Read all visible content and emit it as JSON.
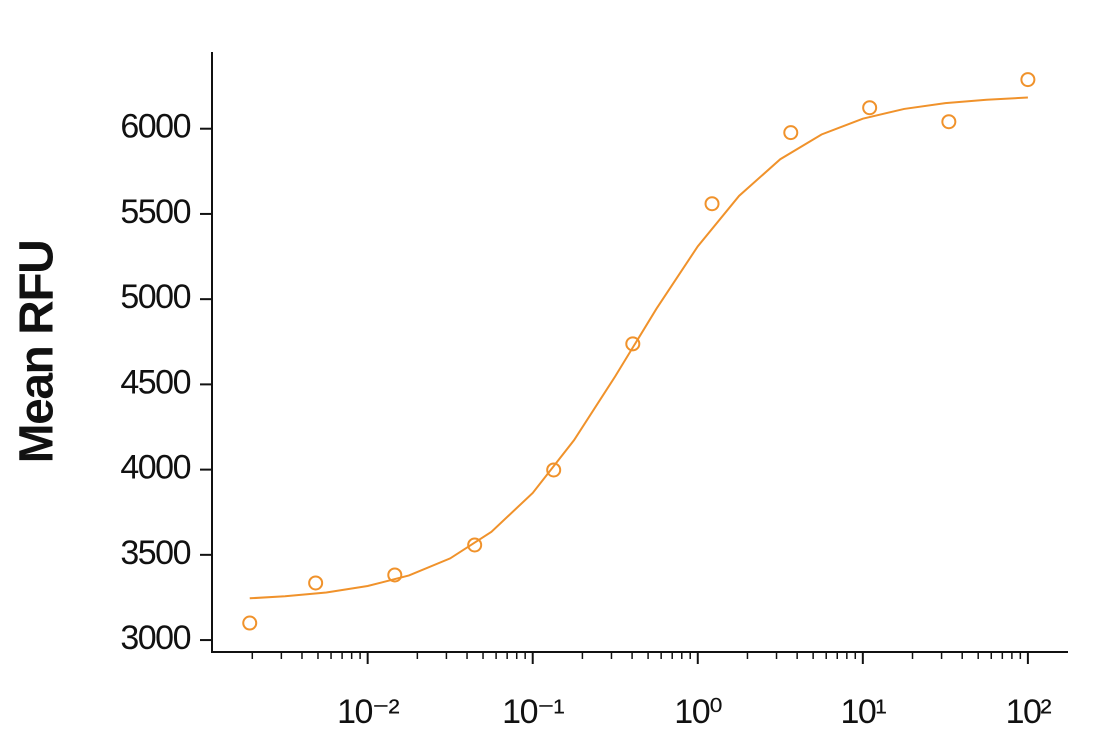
{
  "chart_data": {
    "type": "scatter",
    "y_label": "Mean RFU",
    "xscale": "log",
    "xlim": [
      0.00114,
      175
    ],
    "ylim": [
      2930,
      6450
    ],
    "xticks": [
      {
        "value": 0.01,
        "label": "10⁻²"
      },
      {
        "value": 0.1,
        "label": "10⁻¹"
      },
      {
        "value": 1,
        "label": "10⁰"
      },
      {
        "value": 10,
        "label": "10¹"
      },
      {
        "value": 100,
        "label": "10²"
      }
    ],
    "xminorticks": [
      0.002,
      0.003,
      0.004,
      0.005,
      0.006,
      0.007,
      0.008,
      0.009,
      0.02,
      0.03,
      0.04,
      0.05,
      0.06,
      0.07,
      0.08,
      0.09,
      0.2,
      0.3,
      0.4,
      0.5,
      0.6,
      0.7,
      0.8,
      0.9,
      2,
      3,
      4,
      5,
      6,
      7,
      8,
      9,
      20,
      30,
      40,
      50,
      60,
      70,
      80,
      90
    ],
    "yticks": [
      3000,
      3500,
      4000,
      4500,
      5000,
      5500,
      6000
    ],
    "color": "#f0922b",
    "points": {
      "x": [
        0.00193,
        0.00484,
        0.0146,
        0.0445,
        0.134,
        0.404,
        1.22,
        3.66,
        11.0,
        33.2,
        100
      ],
      "values": [
        3100,
        3335,
        3382,
        3558,
        3998,
        4738,
        5560,
        5977,
        6123,
        6041,
        6288
      ]
    },
    "fit": {
      "x": [
        0.00193,
        0.00316,
        0.00562,
        0.01,
        0.0178,
        0.0316,
        0.0562,
        0.1,
        0.178,
        0.316,
        0.562,
        1,
        1.78,
        3.16,
        5.62,
        10,
        17.8,
        31.6,
        56.2,
        100
      ],
      "values": [
        3245,
        3257,
        3279,
        3317,
        3379,
        3479,
        3635,
        3863,
        4173,
        4547,
        4944,
        5310,
        5606,
        5821,
        5966,
        6059,
        6116,
        6150,
        6170,
        6183
      ]
    }
  }
}
